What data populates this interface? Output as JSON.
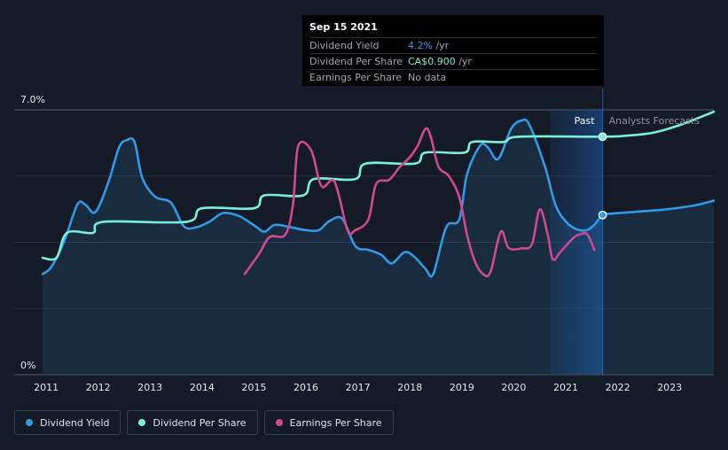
{
  "tooltip": {
    "date": "Sep 15 2021",
    "rows": [
      {
        "name": "Dividend Yield",
        "value": "4.2%",
        "unit": " /yr"
      },
      {
        "name": "Dividend Per Share",
        "value": "CA$0.900",
        "unit": " /yr"
      },
      {
        "name": "Earnings Per Share",
        "value": "No data",
        "unit": ""
      }
    ]
  },
  "legend": [
    {
      "label": "Dividend Yield",
      "color": "#2f9ae6"
    },
    {
      "label": "Dividend Per Share",
      "color": "#79f0d8"
    },
    {
      "label": "Earnings Per Share",
      "color": "#d0488f"
    }
  ],
  "chart_data": {
    "type": "line",
    "title": "",
    "xlabel": "",
    "ylabel": "",
    "x_ticks": [
      "2011",
      "2012",
      "2013",
      "2014",
      "2015",
      "2016",
      "2017",
      "2018",
      "2019",
      "2020",
      "2021",
      "2022",
      "2023"
    ],
    "y_ticks": [
      "0%",
      "7.0%"
    ],
    "ylim": [
      0,
      7
    ],
    "xlim": [
      2010.93,
      2023.85
    ],
    "past_label": "Past",
    "forecast_label": "Analysts Forecasts",
    "forecast_start": 2021.71,
    "forecast_shade_start": 2020.7,
    "grid": true,
    "series": [
      {
        "name": "Dividend Yield",
        "color": "#2f9ae6",
        "fill": true,
        "points": [
          [
            2010.93,
            2.66
          ],
          [
            2011.1,
            2.85
          ],
          [
            2011.35,
            3.54
          ],
          [
            2011.6,
            4.5
          ],
          [
            2011.75,
            4.5
          ],
          [
            2011.95,
            4.3
          ],
          [
            2012.2,
            5.1
          ],
          [
            2012.4,
            6
          ],
          [
            2012.55,
            6.2
          ],
          [
            2012.7,
            6.15
          ],
          [
            2012.85,
            5.2
          ],
          [
            2013.1,
            4.7
          ],
          [
            2013.4,
            4.55
          ],
          [
            2013.65,
            3.92
          ],
          [
            2013.9,
            3.9
          ],
          [
            2014.15,
            4.05
          ],
          [
            2014.4,
            4.27
          ],
          [
            2014.7,
            4.2
          ],
          [
            2015.0,
            3.95
          ],
          [
            2015.2,
            3.78
          ],
          [
            2015.4,
            3.96
          ],
          [
            2015.7,
            3.9
          ],
          [
            2016.0,
            3.82
          ],
          [
            2016.25,
            3.82
          ],
          [
            2016.45,
            4.06
          ],
          [
            2016.7,
            4.12
          ],
          [
            2016.95,
            3.4
          ],
          [
            2017.2,
            3.3
          ],
          [
            2017.45,
            3.17
          ],
          [
            2017.65,
            2.94
          ],
          [
            2017.9,
            3.24
          ],
          [
            2018.1,
            3.1
          ],
          [
            2018.3,
            2.8
          ],
          [
            2018.45,
            2.66
          ],
          [
            2018.7,
            3.9
          ],
          [
            2018.95,
            4.1
          ],
          [
            2019.1,
            5.3
          ],
          [
            2019.35,
            6.05
          ],
          [
            2019.5,
            6.01
          ],
          [
            2019.7,
            5.7
          ],
          [
            2019.95,
            6.5
          ],
          [
            2020.15,
            6.72
          ],
          [
            2020.3,
            6.6
          ],
          [
            2020.6,
            5.5
          ],
          [
            2020.8,
            4.5
          ],
          [
            2021.0,
            4.05
          ],
          [
            2021.2,
            3.85
          ],
          [
            2021.4,
            3.82
          ],
          [
            2021.55,
            3.96
          ],
          [
            2021.71,
            4.22
          ],
          [
            2021.9,
            4.26
          ],
          [
            2022.5,
            4.32
          ],
          [
            2023.0,
            4.38
          ],
          [
            2023.5,
            4.48
          ],
          [
            2023.85,
            4.6
          ]
        ]
      },
      {
        "name": "Dividend Per Share",
        "color": "#79f0d8",
        "fill": false,
        "points": [
          [
            2010.93,
            3.09
          ],
          [
            2011.2,
            3.09
          ],
          [
            2011.4,
            3.75
          ],
          [
            2011.9,
            3.75
          ],
          [
            2012.1,
            4.04
          ],
          [
            2013.7,
            4.04
          ],
          [
            2014.0,
            4.4
          ],
          [
            2015.0,
            4.4
          ],
          [
            2015.2,
            4.74
          ],
          [
            2015.95,
            4.74
          ],
          [
            2016.15,
            5.17
          ],
          [
            2016.95,
            5.17
          ],
          [
            2017.15,
            5.58
          ],
          [
            2018.1,
            5.58
          ],
          [
            2018.3,
            5.87
          ],
          [
            2019.05,
            5.87
          ],
          [
            2019.2,
            6.15
          ],
          [
            2019.8,
            6.15
          ],
          [
            2020.1,
            6.29
          ],
          [
            2021.71,
            6.29
          ],
          [
            2022.2,
            6.32
          ],
          [
            2022.7,
            6.4
          ],
          [
            2023.2,
            6.6
          ],
          [
            2023.85,
            6.95
          ]
        ]
      },
      {
        "name": "Earnings Per Share",
        "color": "#d0488f",
        "fill": false,
        "points": [
          [
            2014.82,
            2.66
          ],
          [
            2015.1,
            3.2
          ],
          [
            2015.3,
            3.64
          ],
          [
            2015.6,
            3.7
          ],
          [
            2015.75,
            4.5
          ],
          [
            2015.85,
            6.04
          ],
          [
            2016.1,
            5.93
          ],
          [
            2016.3,
            4.98
          ],
          [
            2016.55,
            5.1
          ],
          [
            2016.8,
            3.82
          ],
          [
            2016.95,
            3.82
          ],
          [
            2017.2,
            4.1
          ],
          [
            2017.35,
            5.04
          ],
          [
            2017.6,
            5.15
          ],
          [
            2017.8,
            5.48
          ],
          [
            2018.0,
            5.75
          ],
          [
            2018.15,
            6.05
          ],
          [
            2018.3,
            6.5
          ],
          [
            2018.4,
            6.3
          ],
          [
            2018.55,
            5.5
          ],
          [
            2018.75,
            5.25
          ],
          [
            2018.95,
            4.7
          ],
          [
            2019.1,
            3.7
          ],
          [
            2019.25,
            3.0
          ],
          [
            2019.4,
            2.67
          ],
          [
            2019.55,
            2.71
          ],
          [
            2019.75,
            3.78
          ],
          [
            2019.9,
            3.35
          ],
          [
            2020.15,
            3.34
          ],
          [
            2020.35,
            3.45
          ],
          [
            2020.5,
            4.37
          ],
          [
            2020.65,
            3.72
          ],
          [
            2020.75,
            3.05
          ],
          [
            2020.9,
            3.25
          ],
          [
            2021.15,
            3.62
          ],
          [
            2021.3,
            3.72
          ],
          [
            2021.42,
            3.7
          ],
          [
            2021.55,
            3.3
          ]
        ]
      }
    ],
    "markers": [
      {
        "series": "Dividend Yield",
        "x": 2021.71,
        "y": 4.22
      },
      {
        "series": "Dividend Per Share",
        "x": 2021.71,
        "y": 6.29
      }
    ]
  }
}
